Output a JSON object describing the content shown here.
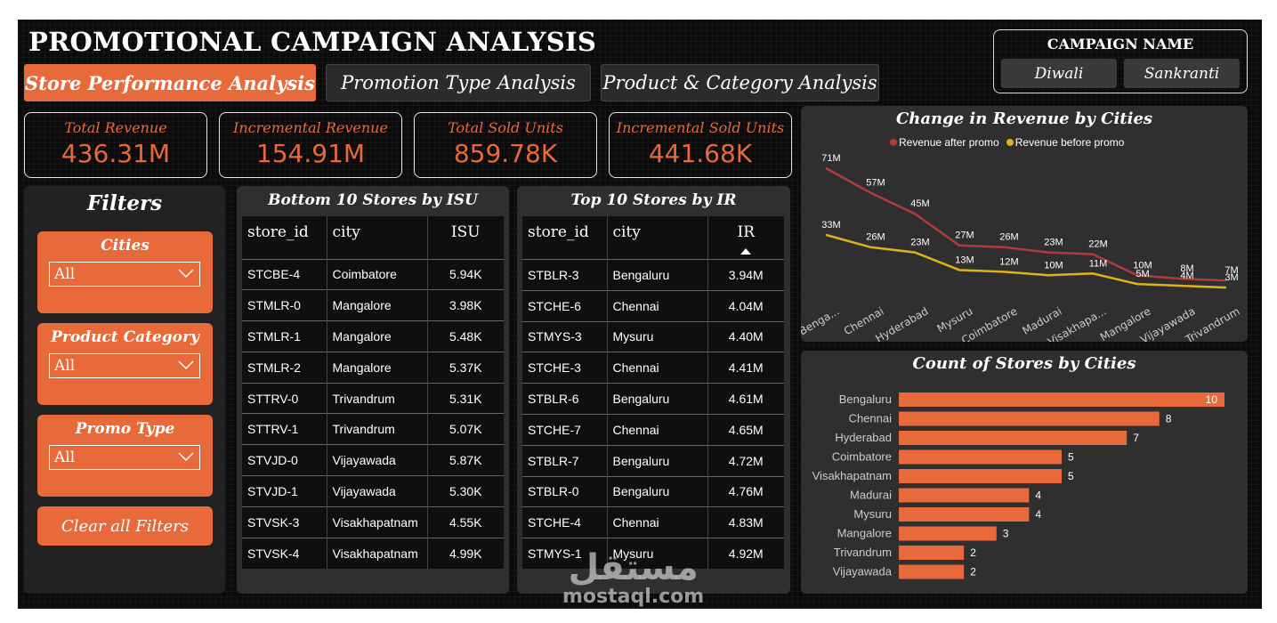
{
  "page_title": "PROMOTIONAL CAMPAIGN ANALYSIS",
  "tabs": [
    {
      "label": "Store Performance Analysis",
      "active": true
    },
    {
      "label": "Promotion Type Analysis",
      "active": false
    },
    {
      "label": "Product & Category Analysis",
      "active": false
    }
  ],
  "campaign": {
    "label": "CAMPAIGN NAME",
    "options": [
      "Diwali",
      "Sankranti"
    ]
  },
  "kpis": [
    {
      "label": "Total Revenue",
      "value": "436.31M"
    },
    {
      "label": "Incremental Revenue",
      "value": "154.91M"
    },
    {
      "label": "Total Sold Units",
      "value": "859.78K"
    },
    {
      "label": "Incremental Sold Units",
      "value": "441.68K"
    }
  ],
  "filters": {
    "title": "Filters",
    "items": [
      {
        "label": "Cities",
        "value": "All"
      },
      {
        "label": "Product Category",
        "value": "All"
      },
      {
        "label": "Promo Type",
        "value": "All"
      }
    ],
    "clear_label": "Clear all Filters"
  },
  "bottom_table": {
    "title": "Bottom 10 Stores by ISU",
    "columns": [
      "store_id",
      "city",
      "ISU"
    ],
    "rows": [
      [
        "STCBE-4",
        "Coimbatore",
        "5.94K"
      ],
      [
        "STMLR-0",
        "Mangalore",
        "3.98K"
      ],
      [
        "STMLR-1",
        "Mangalore",
        "5.48K"
      ],
      [
        "STMLR-2",
        "Mangalore",
        "5.37K"
      ],
      [
        "STTRV-0",
        "Trivandrum",
        "5.31K"
      ],
      [
        "STTRV-1",
        "Trivandrum",
        "5.07K"
      ],
      [
        "STVJD-0",
        "Vijayawada",
        "5.87K"
      ],
      [
        "STVJD-1",
        "Vijayawada",
        "5.30K"
      ],
      [
        "STVSK-3",
        "Visakhapatnam",
        "4.55K"
      ],
      [
        "STVSK-4",
        "Visakhapatnam",
        "4.99K"
      ]
    ]
  },
  "top_table": {
    "title": "Top 10 Stores by IR",
    "columns": [
      "store_id",
      "city",
      "IR"
    ],
    "sort_icon": "sort-ascending-icon",
    "rows": [
      [
        "STBLR-3",
        "Bengaluru",
        "3.94M"
      ],
      [
        "STCHE-6",
        "Chennai",
        "4.04M"
      ],
      [
        "STMYS-3",
        "Mysuru",
        "4.40M"
      ],
      [
        "STCHE-3",
        "Chennai",
        "4.41M"
      ],
      [
        "STBLR-6",
        "Bengaluru",
        "4.61M"
      ],
      [
        "STCHE-7",
        "Chennai",
        "4.65M"
      ],
      [
        "STBLR-7",
        "Bengaluru",
        "4.72M"
      ],
      [
        "STBLR-0",
        "Bengaluru",
        "4.76M"
      ],
      [
        "STCHE-4",
        "Chennai",
        "4.83M"
      ],
      [
        "STMYS-1",
        "Mysuru",
        "4.92M"
      ]
    ]
  },
  "colors": {
    "accent": "#e8693a",
    "after": "#b23a3a",
    "before": "#e0b21a"
  },
  "chart_data": [
    {
      "type": "line",
      "title": "Change in Revenue by Cities",
      "categories": [
        "Benga...",
        "Chennai",
        "Hyderabad",
        "Mysuru",
        "Coimbatore",
        "Madurai",
        "Visakhapa...",
        "Mangalore",
        "Vijayawada",
        "Trivandrum"
      ],
      "series": [
        {
          "name": "Revenue after promo",
          "values": [
            71,
            57,
            45,
            27,
            26,
            23,
            22,
            10,
            8,
            7
          ],
          "labels": [
            "71M",
            "57M",
            "45M",
            "27M",
            "26M",
            "23M",
            "22M",
            "10M",
            "8M",
            "7M"
          ]
        },
        {
          "name": "Revenue before promo",
          "values": [
            33,
            26,
            23,
            13,
            12,
            10,
            11,
            5,
            4,
            3
          ],
          "labels": [
            "33M",
            "26M",
            "23M",
            "13M",
            "12M",
            "10M",
            "11M",
            "5M",
            "4M",
            "3M"
          ]
        }
      ],
      "legend": "top-center",
      "ylim": [
        0,
        75
      ]
    },
    {
      "type": "bar",
      "orientation": "horizontal",
      "title": "Count of Stores by Cities",
      "categories": [
        "Bengaluru",
        "Chennai",
        "Hyderabad",
        "Coimbatore",
        "Visakhapatnam",
        "Madurai",
        "Mysuru",
        "Mangalore",
        "Trivandrum",
        "Vijayawada"
      ],
      "values": [
        10,
        8,
        7,
        5,
        5,
        4,
        4,
        3,
        2,
        2
      ],
      "xlim": [
        0,
        10
      ]
    }
  ],
  "watermark": {
    "line1": "مستقل",
    "line2": "mostaql.com"
  }
}
